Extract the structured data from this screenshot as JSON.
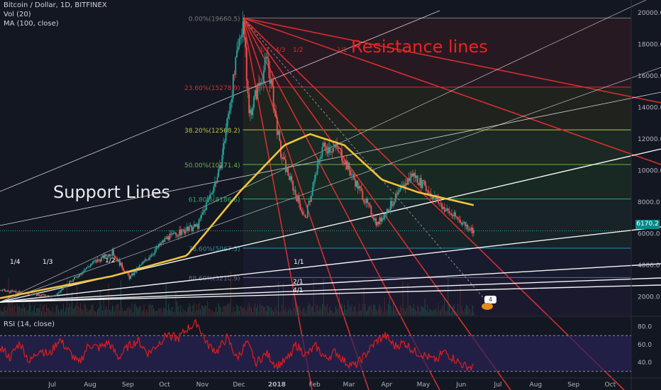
{
  "header": {
    "symbol_line": "Bitcoin / Dollar, 1D, BITFINEX",
    "vol_line": "Vol (20)",
    "ma_line": "MA (100, close)",
    "rsi_line": "RSI (14, close)"
  },
  "annotations": {
    "resistance": "Resistance lines",
    "support": "Support Lines",
    "price_tag": "6170.2",
    "badge": "4"
  },
  "colors": {
    "background": "#131722",
    "up": "#26a69a",
    "down": "#ef5350",
    "ma": "#f0c33c",
    "resistance": "#d32f2f",
    "support": "#ffffff",
    "rsi": "#e31b1b",
    "rsi_band": "#2a2356"
  },
  "chart_data": [
    {
      "type": "candlestick",
      "title": "Bitcoin / Dollar, 1D, BITFINEX",
      "yaxis": {
        "ticks": [
          2000.0,
          4000.0,
          6000.0,
          8000.0,
          10000.0,
          12000.0,
          14000.0,
          16000.0,
          18000.0,
          20000.0
        ],
        "range": [
          800,
          20800
        ]
      },
      "xaxis": {
        "ticks": [
          "Jul",
          "Aug",
          "Sep",
          "Oct",
          "Nov",
          "Dec",
          "2018",
          "Feb",
          "Mar",
          "Apr",
          "May",
          "Jun",
          "Jul",
          "Aug",
          "Sep",
          "Oct"
        ],
        "range": [
          "2017-06-01",
          "2018-10-31"
        ]
      },
      "price_key_points": [
        {
          "date": "2017-06-01",
          "close": 2400
        },
        {
          "date": "2017-07-15",
          "close": 2000
        },
        {
          "date": "2017-08-15",
          "close": 4100
        },
        {
          "date": "2017-09-01",
          "close": 4800
        },
        {
          "date": "2017-09-15",
          "close": 3200
        },
        {
          "date": "2017-10-15",
          "close": 5700
        },
        {
          "date": "2017-11-10",
          "close": 6500
        },
        {
          "date": "2017-11-28",
          "close": 10000
        },
        {
          "date": "2017-12-17",
          "close": 19660.5
        },
        {
          "date": "2017-12-22",
          "close": 13500
        },
        {
          "date": "2018-01-06",
          "close": 17100
        },
        {
          "date": "2018-01-17",
          "close": 11000
        },
        {
          "date": "2018-02-06",
          "close": 6900
        },
        {
          "date": "2018-02-20",
          "close": 11500
        },
        {
          "date": "2018-03-05",
          "close": 11400
        },
        {
          "date": "2018-04-06",
          "close": 6600
        },
        {
          "date": "2018-05-05",
          "close": 9800
        },
        {
          "date": "2018-06-01",
          "close": 7500
        },
        {
          "date": "2018-06-24",
          "close": 6170.2
        }
      ],
      "current_price": 6170.2,
      "ma100_key_points": [
        {
          "date": "2017-06-01",
          "value": 1900
        },
        {
          "date": "2017-09-01",
          "value": 3300
        },
        {
          "date": "2017-11-01",
          "value": 4600
        },
        {
          "date": "2017-12-15",
          "value": 8700
        },
        {
          "date": "2018-01-20",
          "value": 11600
        },
        {
          "date": "2018-02-10",
          "value": 12300
        },
        {
          "date": "2018-03-10",
          "value": 11600
        },
        {
          "date": "2018-04-10",
          "value": 9400
        },
        {
          "date": "2018-05-10",
          "value": 8600
        },
        {
          "date": "2018-06-24",
          "value": 7800
        }
      ],
      "fibonacci_retracement": [
        {
          "label": "0.00%(19660.5)",
          "level": 0.0,
          "price": 19660.5
        },
        {
          "label": "23.60%(15278.9)",
          "level": 0.236,
          "price": 15278.9
        },
        {
          "label": "38.20%(12568.2)",
          "level": 0.382,
          "price": 12568.2
        },
        {
          "label": "50.00%(10371.4)",
          "level": 0.5,
          "price": 10371.4
        },
        {
          "label": "61.80%(8186.6)",
          "level": 0.618,
          "price": 8186.6
        },
        {
          "label": "78.60%(5067.5)",
          "level": 0.786,
          "price": 5067.5
        },
        {
          "label": "88.60%(3210.9)",
          "level": 0.886,
          "price": 3210.9
        }
      ],
      "fan_labels": [
        {
          "text": "1/4"
        },
        {
          "text": "1/3"
        },
        {
          "text": "1/2"
        },
        {
          "text": "1/1"
        },
        {
          "text": "2/1"
        },
        {
          "text": "4/1"
        },
        {
          "text": "3/4"
        },
        {
          "text": "4/3"
        },
        {
          "text": "1/2"
        },
        {
          "text": "1/1"
        }
      ]
    },
    {
      "type": "line",
      "title": "RSI (14, close)",
      "yaxis": {
        "ticks": [
          40.0,
          60.0,
          80.0
        ],
        "band": [
          30,
          70
        ]
      },
      "values": [
        58,
        45,
        62,
        40,
        55,
        48,
        66,
        52,
        38,
        60,
        56,
        62,
        45,
        58,
        64,
        50,
        60,
        72,
        66,
        78,
        84,
        60,
        52,
        68,
        44,
        62,
        40,
        50,
        36,
        42,
        60,
        48,
        58,
        44,
        52,
        40,
        36,
        48,
        62,
        70,
        58,
        62,
        52,
        48,
        42,
        52,
        44,
        36,
        34
      ]
    }
  ]
}
